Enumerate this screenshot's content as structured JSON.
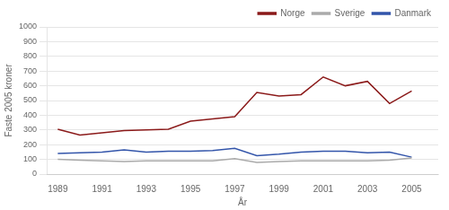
{
  "chart_data": {
    "type": "line",
    "x": [
      1989,
      1990,
      1991,
      1992,
      1993,
      1994,
      1995,
      1996,
      1997,
      1998,
      1999,
      2000,
      2001,
      2002,
      2003,
      2004,
      2005
    ],
    "series": [
      {
        "name": "Norge",
        "color": "#8B1A1A",
        "values": [
          305,
          265,
          280,
          295,
          300,
          305,
          360,
          375,
          390,
          555,
          530,
          540,
          660,
          600,
          630,
          480,
          565
        ]
      },
      {
        "name": "Sverige",
        "color": "#AAAAAA",
        "values": [
          100,
          95,
          90,
          85,
          90,
          90,
          90,
          90,
          105,
          80,
          85,
          90,
          90,
          90,
          90,
          95,
          110
        ]
      },
      {
        "name": "Danmark",
        "color": "#3355AA",
        "values": [
          140,
          145,
          150,
          165,
          150,
          155,
          155,
          160,
          175,
          125,
          135,
          150,
          155,
          155,
          145,
          150,
          115
        ]
      }
    ],
    "xlabel": "År",
    "ylabel": "Faste 2005 kroner",
    "xlim": [
      1988.5,
      2006.2
    ],
    "xticks": [
      1989,
      1991,
      1993,
      1995,
      1997,
      1999,
      2001,
      2003,
      2005
    ],
    "ylim": [
      0,
      1000
    ],
    "yticks": [
      0,
      100,
      200,
      300,
      400,
      500,
      600,
      700,
      800,
      900,
      1000
    ],
    "grid": "y",
    "legend": "upper right"
  }
}
